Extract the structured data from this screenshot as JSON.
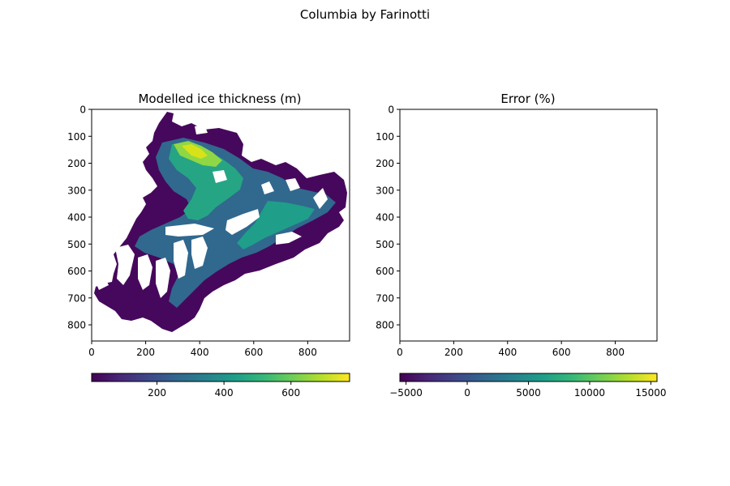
{
  "figure": {
    "suptitle": "Columbia by Farinotti"
  },
  "colors": {
    "viridis": [
      "#440154",
      "#482878",
      "#3e4989",
      "#31688e",
      "#26828e",
      "#1f9e89",
      "#35b779",
      "#6ece58",
      "#b5de2b",
      "#fde725"
    ],
    "axes": "#000000",
    "background": "#ffffff"
  },
  "chart_data": [
    {
      "type": "heatmap",
      "title": "Modelled ice thickness (m)",
      "xlabel": "",
      "ylabel": "",
      "xlim": [
        0,
        955
      ],
      "ylim": [
        860,
        0
      ],
      "x_ticks": [
        "0",
        "200",
        "400",
        "600",
        "800"
      ],
      "x_tick_values": [
        0,
        200,
        400,
        600,
        800
      ],
      "y_ticks": [
        "0",
        "100",
        "200",
        "300",
        "400",
        "500",
        "600",
        "700",
        "800"
      ],
      "y_tick_values": [
        0,
        100,
        200,
        300,
        400,
        500,
        600,
        700,
        800
      ],
      "colorbar": {
        "orientation": "horizontal",
        "range": [
          5,
          775
        ],
        "ticks": [
          "200",
          "400",
          "600"
        ],
        "tick_values": [
          200,
          400,
          600
        ],
        "colormap": "viridis"
      },
      "grid": false,
      "content": "glacier ice-thickness field; thickest ice (~600-775 m) in the northern upper basin near x 300-550, y 120-250; main trunk ~300-450 m along y 250-450; tributary branches and outlet margins thin (<150 m); masked/no-data areas left blank"
    },
    {
      "type": "heatmap",
      "title": "Error (%)",
      "xlabel": "",
      "ylabel": "",
      "xlim": [
        0,
        955
      ],
      "ylim": [
        860,
        0
      ],
      "x_ticks": [
        "0",
        "200",
        "400",
        "600",
        "800"
      ],
      "x_tick_values": [
        0,
        200,
        400,
        600,
        800
      ],
      "y_ticks": [
        "0",
        "100",
        "200",
        "300",
        "400",
        "500",
        "600",
        "700",
        "800"
      ],
      "y_tick_values": [
        0,
        100,
        200,
        300,
        400,
        500,
        600,
        700,
        800
      ],
      "colorbar": {
        "orientation": "horizontal",
        "range": [
          -5500,
          15500
        ],
        "ticks": [
          "−5000",
          "0",
          "5000",
          "10000",
          "15000"
        ],
        "tick_values": [
          -5000,
          0,
          5000,
          10000,
          15000
        ],
        "colormap": "viridis"
      },
      "grid": false,
      "content": "empty panel (no error values plotted)"
    }
  ]
}
